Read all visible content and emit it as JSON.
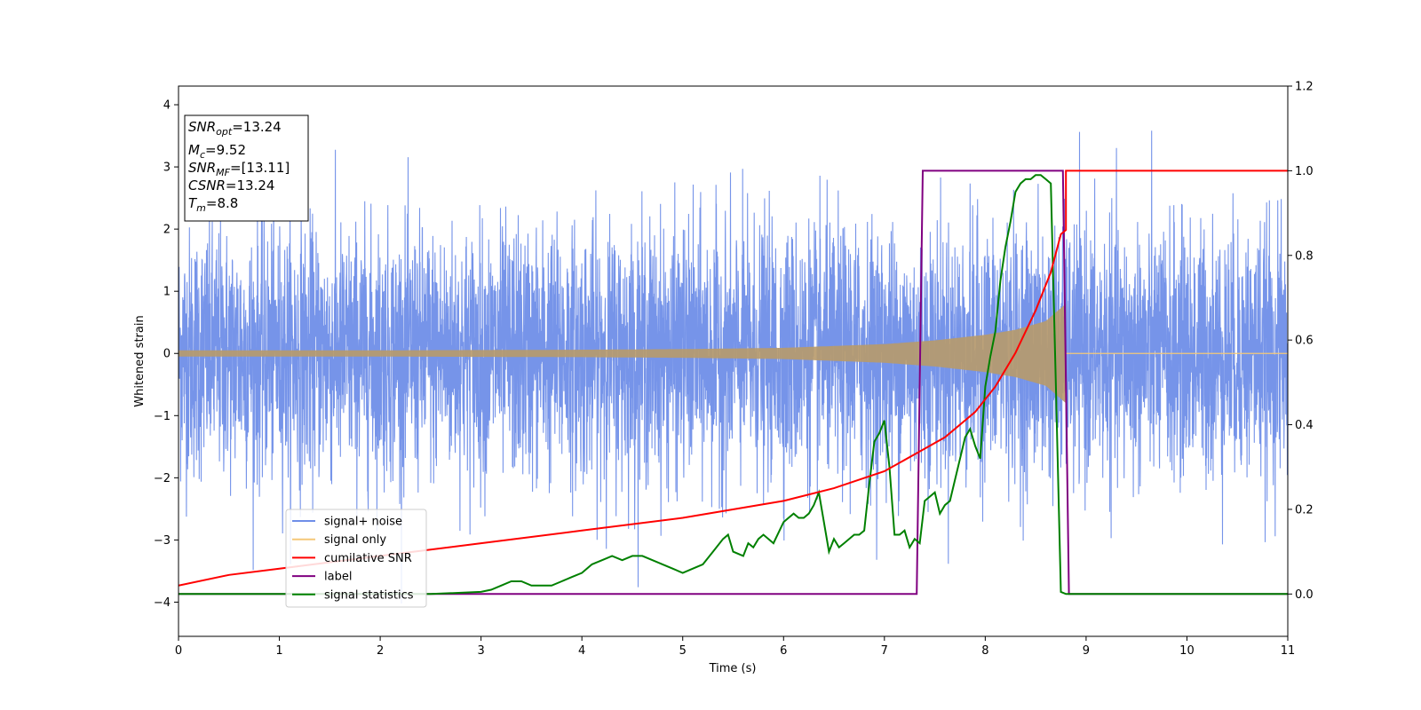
{
  "chart_data": {
    "type": "line",
    "xlabel": "Time (s)",
    "ylabel_left": "Whitened strain",
    "ylabel_right": "",
    "xlim": [
      0,
      11
    ],
    "ylim_left": [
      -4.55,
      4.3
    ],
    "ylim_right": [
      -0.1,
      1.2
    ],
    "x_ticks": [
      "0",
      "1",
      "2",
      "3",
      "4",
      "5",
      "6",
      "7",
      "8",
      "9",
      "10",
      "11"
    ],
    "y_ticks_left": [
      "−4",
      "−3",
      "−2",
      "−1",
      "0",
      "1",
      "2",
      "3",
      "4"
    ],
    "y_ticks_right": [
      "0.0",
      "0.2",
      "0.4",
      "0.6",
      "0.8",
      "1.0",
      "1.2"
    ],
    "grid": false,
    "legend_position": "lower-left",
    "legend": [
      {
        "name": "signal+ noise",
        "color": "#6f8ee8"
      },
      {
        "name": "signal only",
        "color": "#f5c878"
      },
      {
        "name": "cumilative SNR",
        "color": "#ff0000"
      },
      {
        "name": "label",
        "color": "#800080"
      },
      {
        "name": "signal statistics",
        "color": "#008000"
      }
    ],
    "info_box": [
      {
        "main": "SNR",
        "sub": "opt",
        "rest": "=13.24"
      },
      {
        "main": "M",
        "sub": "c",
        "rest": "=9.52"
      },
      {
        "main": "SNR",
        "sub": "MF",
        "rest": "=[13.11]"
      },
      {
        "main": "CSNR",
        "sub": "",
        "rest": "=13.24"
      },
      {
        "main": "T",
        "sub": "m",
        "rest": "=8.8"
      }
    ],
    "series": [
      {
        "name": "signal+ noise",
        "axis": "left",
        "description_values": {
          "mean": 0,
          "std": 1.0,
          "min": -4.15,
          "max": 3.9,
          "x_range": [
            0,
            11
          ]
        }
      },
      {
        "name": "signal only",
        "axis": "left",
        "envelope": {
          "x": [
            0,
            2,
            4,
            5,
            6,
            7,
            7.5,
            8,
            8.3,
            8.6,
            8.8,
            11
          ],
          "amp": [
            0.05,
            0.05,
            0.06,
            0.07,
            0.09,
            0.15,
            0.21,
            0.3,
            0.38,
            0.52,
            0.8,
            0
          ]
        }
      },
      {
        "name": "cumilative SNR",
        "axis": "right",
        "x": [
          0,
          0.5,
          1,
          2,
          3,
          4,
          5,
          6,
          6.5,
          7,
          7.3,
          7.6,
          7.9,
          8.1,
          8.3,
          8.5,
          8.65,
          8.75,
          8.8,
          8.8,
          11
        ],
        "y": [
          0.02,
          0.045,
          0.06,
          0.09,
          0.12,
          0.15,
          0.18,
          0.22,
          0.25,
          0.29,
          0.33,
          0.37,
          0.43,
          0.49,
          0.57,
          0.67,
          0.76,
          0.85,
          0.86,
          1.0,
          1.0
        ]
      },
      {
        "name": "label",
        "axis": "right",
        "x": [
          0,
          7.32,
          7.38,
          8.77,
          8.83,
          11
        ],
        "y": [
          0,
          0,
          1.0,
          1.0,
          0,
          0
        ]
      },
      {
        "name": "signal statistics",
        "axis": "right",
        "x": [
          0,
          1,
          2,
          2.5,
          2.8,
          3.0,
          3.1,
          3.2,
          3.3,
          3.4,
          3.5,
          3.6,
          3.7,
          3.8,
          3.9,
          4.0,
          4.1,
          4.2,
          4.3,
          4.4,
          4.5,
          4.6,
          4.7,
          4.8,
          4.9,
          5.0,
          5.1,
          5.2,
          5.3,
          5.4,
          5.45,
          5.5,
          5.6,
          5.65,
          5.7,
          5.75,
          5.8,
          5.9,
          6.0,
          6.1,
          6.15,
          6.2,
          6.25,
          6.3,
          6.35,
          6.45,
          6.5,
          6.55,
          6.6,
          6.7,
          6.75,
          6.8,
          6.85,
          6.9,
          6.95,
          7.0,
          7.05,
          7.1,
          7.15,
          7.2,
          7.25,
          7.3,
          7.35,
          7.4,
          7.45,
          7.5,
          7.55,
          7.6,
          7.65,
          7.7,
          7.75,
          7.8,
          7.85,
          7.9,
          7.95,
          8.0,
          8.05,
          8.1,
          8.15,
          8.2,
          8.25,
          8.3,
          8.35,
          8.4,
          8.45,
          8.5,
          8.55,
          8.6,
          8.65,
          8.7,
          8.75,
          8.8,
          8.85,
          9,
          11
        ],
        "y": [
          0.0,
          0.0,
          0.0,
          0.0,
          0.003,
          0.005,
          0.01,
          0.02,
          0.03,
          0.03,
          0.02,
          0.02,
          0.02,
          0.03,
          0.04,
          0.05,
          0.07,
          0.08,
          0.09,
          0.08,
          0.09,
          0.09,
          0.08,
          0.07,
          0.06,
          0.05,
          0.06,
          0.07,
          0.1,
          0.13,
          0.14,
          0.1,
          0.09,
          0.12,
          0.11,
          0.13,
          0.14,
          0.12,
          0.17,
          0.19,
          0.18,
          0.18,
          0.19,
          0.21,
          0.24,
          0.1,
          0.13,
          0.11,
          0.12,
          0.14,
          0.14,
          0.15,
          0.26,
          0.36,
          0.38,
          0.41,
          0.3,
          0.14,
          0.14,
          0.15,
          0.11,
          0.13,
          0.12,
          0.22,
          0.23,
          0.24,
          0.19,
          0.21,
          0.22,
          0.27,
          0.32,
          0.37,
          0.39,
          0.35,
          0.32,
          0.49,
          0.56,
          0.62,
          0.74,
          0.82,
          0.88,
          0.95,
          0.97,
          0.98,
          0.98,
          0.99,
          0.99,
          0.98,
          0.97,
          0.5,
          0.005,
          0.0,
          0.0,
          0.0,
          0.0
        ]
      }
    ]
  }
}
